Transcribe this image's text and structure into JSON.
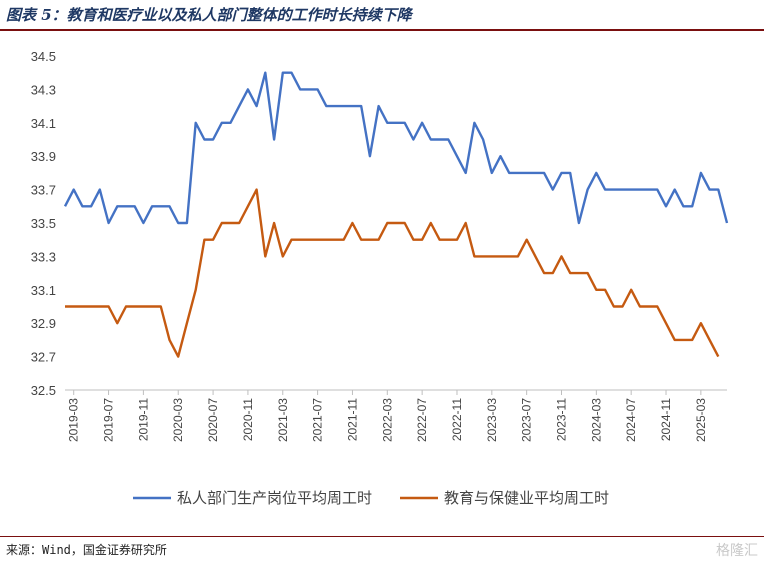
{
  "figure": {
    "title": "图表 5：教育和医疗业以及私人部门整体的工作时长持续下降",
    "source": "来源：Wind，国金证券研究所",
    "watermark": "格隆汇"
  },
  "colors": {
    "blue": "#4472c4",
    "orange": "#c55a11",
    "rule": "#7a0f0f",
    "axis": "#bfbfbf"
  },
  "chart_data": {
    "type": "line",
    "ylim": [
      32.5,
      34.5
    ],
    "yticks": [
      "32.5",
      "32.7",
      "32.9",
      "33.1",
      "33.3",
      "33.5",
      "33.7",
      "33.9",
      "34.1",
      "34.3",
      "34.5"
    ],
    "x_start": "2019-02",
    "xtick_labels": [
      "2019-03",
      "2019-07",
      "2019-11",
      "2020-03",
      "2020-07",
      "2020-11",
      "2021-03",
      "2021-07",
      "2021-11",
      "2022-03",
      "2022-07",
      "2022-11",
      "2023-03",
      "2023-07",
      "2023-11",
      "2024-03",
      "2024-07",
      "2024-11",
      "2025-03"
    ],
    "legend_position": "bottom",
    "series": [
      {
        "name": "私人部门生产岗位平均周工时",
        "color": "#4472c4",
        "values": [
          33.6,
          33.7,
          33.6,
          33.6,
          33.7,
          33.5,
          33.6,
          33.6,
          33.6,
          33.5,
          33.6,
          33.6,
          33.6,
          33.5,
          33.5,
          34.1,
          34.0,
          34.0,
          34.1,
          34.1,
          34.2,
          34.3,
          34.2,
          34.4,
          34.0,
          34.4,
          34.4,
          34.3,
          34.3,
          34.3,
          34.2,
          34.2,
          34.2,
          34.2,
          34.2,
          33.9,
          34.2,
          34.1,
          34.1,
          34.1,
          34.0,
          34.1,
          34.0,
          34.0,
          34.0,
          33.9,
          33.8,
          34.1,
          34.0,
          33.8,
          33.9,
          33.8,
          33.8,
          33.8,
          33.8,
          33.8,
          33.7,
          33.8,
          33.8,
          33.5,
          33.7,
          33.8,
          33.7,
          33.7,
          33.7,
          33.7,
          33.7,
          33.7,
          33.7,
          33.6,
          33.7,
          33.6,
          33.6,
          33.8,
          33.7,
          33.7,
          33.5
        ]
      },
      {
        "name": "教育与保健业平均周工时",
        "color": "#c55a11",
        "values": [
          33.0,
          33.0,
          33.0,
          33.0,
          33.0,
          33.0,
          32.9,
          33.0,
          33.0,
          33.0,
          33.0,
          33.0,
          32.8,
          32.7,
          32.9,
          33.1,
          33.4,
          33.4,
          33.5,
          33.5,
          33.5,
          33.6,
          33.7,
          33.3,
          33.5,
          33.3,
          33.4,
          33.4,
          33.4,
          33.4,
          33.4,
          33.4,
          33.4,
          33.5,
          33.4,
          33.4,
          33.4,
          33.5,
          33.5,
          33.5,
          33.4,
          33.4,
          33.5,
          33.4,
          33.4,
          33.4,
          33.5,
          33.3,
          33.3,
          33.3,
          33.3,
          33.3,
          33.3,
          33.4,
          33.3,
          33.2,
          33.2,
          33.3,
          33.2,
          33.2,
          33.2,
          33.1,
          33.1,
          33.0,
          33.0,
          33.1,
          33.0,
          33.0,
          33.0,
          32.9,
          32.8,
          32.8,
          32.8,
          32.9,
          32.8,
          32.7
        ]
      }
    ]
  }
}
